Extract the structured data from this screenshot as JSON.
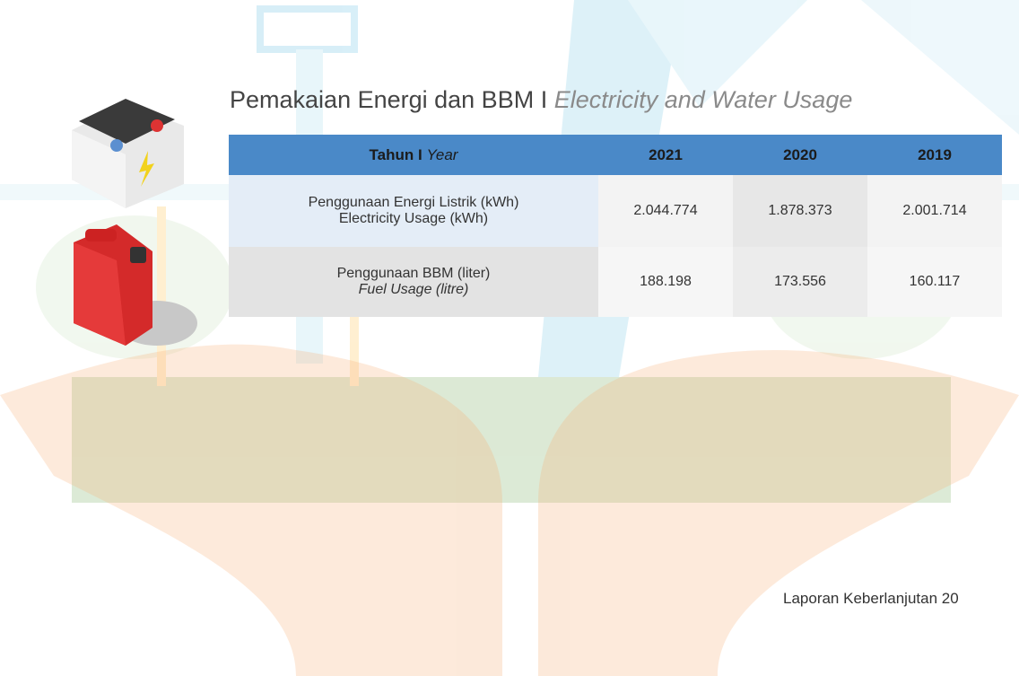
{
  "title": {
    "main": "Pemakaian Energi dan BBM I",
    "italic": "Electricity and Water Usage"
  },
  "table": {
    "header": {
      "label": "Tahun I",
      "label_italic": "Year",
      "years": [
        "2021",
        "2020",
        "2019"
      ]
    },
    "rows": [
      {
        "label": "Penggunaan Energi Listrik (kWh)",
        "label_en": "Electricity Usage (kWh)",
        "values": [
          "2.044.774",
          "1.878.373",
          "2.001.714"
        ]
      },
      {
        "label": "Penggunaan BBM (liter)",
        "label_en": "Fuel Usage (litre)",
        "values": [
          "188.198",
          "173.556",
          "160.117"
        ]
      }
    ]
  },
  "footer": "Laporan Keberlanjutan 20"
}
